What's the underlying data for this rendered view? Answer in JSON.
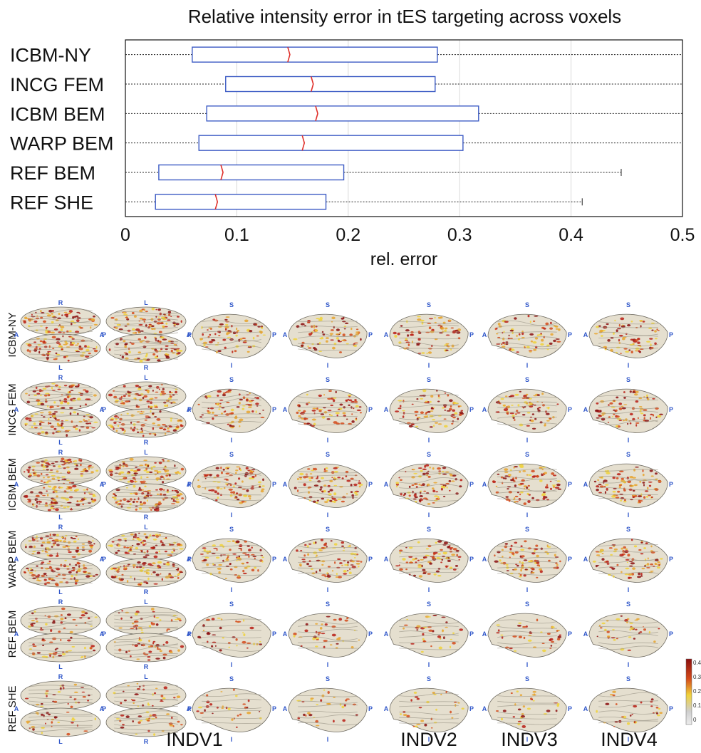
{
  "chart_data": [
    {
      "type": "boxplot",
      "title": "Relative intensity error in tES targeting across voxels",
      "xlabel": "rel. error",
      "ylabel": "",
      "xlim": [
        0,
        0.5
      ],
      "x_ticks": [
        "0",
        "0.1",
        "0.2",
        "0.3",
        "0.4",
        "0.5"
      ],
      "grid": "vertical",
      "categories": [
        "ICBM-NY",
        "INCG FEM",
        "ICBM BEM",
        "WARP BEM",
        "REF BEM",
        "REF SHE"
      ],
      "boxes": [
        {
          "whisker_low": 0.0,
          "q1": 0.06,
          "median": 0.147,
          "q3": 0.28,
          "whisker_high": 0.5
        },
        {
          "whisker_low": 0.0,
          "q1": 0.09,
          "median": 0.168,
          "q3": 0.278,
          "whisker_high": 0.5
        },
        {
          "whisker_low": 0.0,
          "q1": 0.073,
          "median": 0.172,
          "q3": 0.317,
          "whisker_high": 0.5
        },
        {
          "whisker_low": 0.0,
          "q1": 0.066,
          "median": 0.16,
          "q3": 0.303,
          "whisker_high": 0.5
        },
        {
          "whisker_low": 0.0,
          "q1": 0.03,
          "median": 0.087,
          "q3": 0.196,
          "whisker_high": 0.445
        },
        {
          "whisker_low": 0.0,
          "q1": 0.027,
          "median": 0.082,
          "q3": 0.18,
          "whisker_high": 0.41
        }
      ],
      "colors": {
        "box": "#3c5bc4",
        "median": "#e0302a",
        "whisker": "#222222",
        "grid": "#d9d9d9"
      }
    },
    {
      "type": "heatmap",
      "description_rows": [
        "ICBM-NY",
        "INCG FEM",
        "ICBM BEM",
        "WARP BEM",
        "REF BEM",
        "REF SHE"
      ],
      "columns": [
        "INDV1",
        "INDV2",
        "INDV3",
        "INDV4"
      ],
      "row_density": [
        0.75,
        0.8,
        0.95,
        0.85,
        0.35,
        0.25
      ],
      "colorbar": {
        "ticks": [
          "0.4",
          "0.3",
          "0.2",
          "0.1",
          "0"
        ],
        "colors": [
          "#8b0f0f",
          "#d44a1a",
          "#f0d23a",
          "#cfcfcf",
          "#e8e8e8"
        ]
      },
      "orientation_labels": {
        "top_views": {
          "top": [
            "R",
            "L"
          ],
          "bottom": [
            "L",
            "R"
          ],
          "left": "A",
          "right": "P"
        },
        "side_views": {
          "top": "S",
          "bottom": "I",
          "left": "A",
          "right": "P"
        }
      }
    }
  ]
}
